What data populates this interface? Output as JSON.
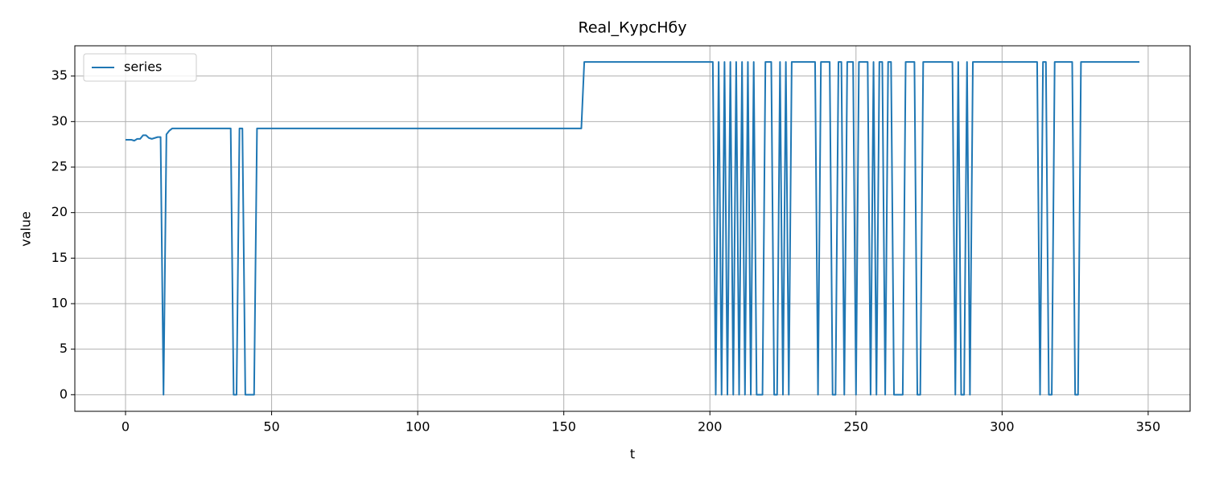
{
  "chart_data": {
    "type": "line",
    "title": "Real_КурсНбу",
    "x_label": "t",
    "y_label": "value",
    "xlim": [
      -17.35,
      364.35
    ],
    "ylim": [
      -1.825,
      38.325
    ],
    "xticks": [
      0,
      50,
      100,
      150,
      200,
      250,
      300,
      350
    ],
    "yticks": [
      0,
      5,
      10,
      15,
      20,
      25,
      30,
      35
    ],
    "grid": true,
    "legend": "upper left",
    "x": [
      0,
      1,
      2,
      3,
      4,
      5,
      6,
      7,
      8,
      9,
      10,
      11,
      12,
      13,
      14,
      15,
      16,
      17,
      18,
      19,
      20,
      21,
      22,
      23,
      24,
      25,
      26,
      27,
      28,
      29,
      30,
      31,
      32,
      33,
      34,
      35,
      36,
      37,
      38,
      39,
      40,
      41,
      42,
      43,
      44,
      45,
      46,
      47,
      48,
      49,
      50,
      51,
      52,
      53,
      54,
      55,
      56,
      57,
      58,
      59,
      60,
      61,
      62,
      63,
      64,
      65,
      66,
      67,
      68,
      69,
      70,
      71,
      72,
      73,
      74,
      75,
      76,
      77,
      78,
      79,
      80,
      81,
      82,
      83,
      84,
      85,
      86,
      87,
      88,
      89,
      90,
      91,
      92,
      93,
      94,
      95,
      96,
      97,
      98,
      99,
      100,
      101,
      102,
      103,
      104,
      105,
      106,
      107,
      108,
      109,
      110,
      111,
      112,
      113,
      114,
      115,
      116,
      117,
      118,
      119,
      120,
      121,
      122,
      123,
      124,
      125,
      126,
      127,
      128,
      129,
      130,
      131,
      132,
      133,
      134,
      135,
      136,
      137,
      138,
      139,
      140,
      141,
      142,
      143,
      144,
      145,
      146,
      147,
      148,
      149,
      150,
      151,
      152,
      153,
      154,
      155,
      156,
      157,
      158,
      159,
      160,
      161,
      162,
      163,
      164,
      165,
      166,
      167,
      168,
      169,
      170,
      171,
      172,
      173,
      174,
      175,
      176,
      177,
      178,
      179,
      180,
      181,
      182,
      183,
      184,
      185,
      186,
      187,
      188,
      189,
      190,
      191,
      192,
      193,
      194,
      195,
      196,
      197,
      198,
      199,
      200,
      201,
      202,
      203,
      204,
      205,
      206,
      207,
      208,
      209,
      210,
      211,
      212,
      213,
      214,
      215,
      216,
      217,
      218,
      219,
      220,
      221,
      222,
      223,
      224,
      225,
      226,
      227,
      228,
      229,
      230,
      231,
      232,
      233,
      234,
      235,
      236,
      237,
      238,
      239,
      240,
      241,
      242,
      243,
      244,
      245,
      246,
      247,
      248,
      249,
      250,
      251,
      252,
      253,
      254,
      255,
      256,
      257,
      258,
      259,
      260,
      261,
      262,
      263,
      264,
      265,
      266,
      267,
      268,
      269,
      270,
      271,
      272,
      273,
      274,
      275,
      276,
      277,
      278,
      279,
      280,
      281,
      282,
      283,
      284,
      285,
      286,
      287,
      288,
      289,
      290,
      291,
      292,
      293,
      294,
      295,
      296,
      297,
      298,
      299,
      300,
      301,
      302,
      303,
      304,
      305,
      306,
      307,
      308,
      309,
      310,
      311,
      312,
      313,
      314,
      315,
      316,
      317,
      318,
      319,
      320,
      321,
      322,
      323,
      324,
      325,
      326,
      327,
      328,
      329,
      330,
      331,
      332,
      333,
      334,
      335,
      336,
      337,
      338,
      339,
      340,
      341,
      342,
      343,
      344,
      345,
      346,
      347
    ],
    "series": [
      {
        "name": "series",
        "color": "#1f77b4",
        "values": [
          28,
          28,
          28,
          27.9,
          28.1,
          28.1,
          28.5,
          28.5,
          28.2,
          28.1,
          28.2,
          28.3,
          28.3,
          0,
          28.6,
          29,
          29.25,
          29.25,
          29.25,
          29.25,
          29.25,
          29.25,
          29.25,
          29.25,
          29.25,
          29.25,
          29.25,
          29.25,
          29.25,
          29.25,
          29.25,
          29.25,
          29.25,
          29.25,
          29.25,
          29.25,
          29.25,
          0,
          0,
          29.25,
          29.25,
          0,
          0,
          0,
          0,
          29.25,
          29.25,
          29.25,
          29.25,
          29.25,
          29.25,
          29.25,
          29.25,
          29.25,
          29.25,
          29.25,
          29.25,
          29.25,
          29.25,
          29.25,
          29.25,
          29.25,
          29.25,
          29.25,
          29.25,
          29.25,
          29.25,
          29.25,
          29.25,
          29.25,
          29.25,
          29.25,
          29.25,
          29.25,
          29.25,
          29.25,
          29.25,
          29.25,
          29.25,
          29.25,
          29.25,
          29.25,
          29.25,
          29.25,
          29.25,
          29.25,
          29.25,
          29.25,
          29.25,
          29.25,
          29.25,
          29.25,
          29.25,
          29.25,
          29.25,
          29.25,
          29.25,
          29.25,
          29.25,
          29.25,
          29.25,
          29.25,
          29.25,
          29.25,
          29.25,
          29.25,
          29.25,
          29.25,
          29.25,
          29.25,
          29.25,
          29.25,
          29.25,
          29.25,
          29.25,
          29.25,
          29.25,
          29.25,
          29.25,
          29.25,
          29.25,
          29.25,
          29.25,
          29.25,
          29.25,
          29.25,
          29.25,
          29.25,
          29.25,
          29.25,
          29.25,
          29.25,
          29.25,
          29.25,
          29.25,
          29.25,
          29.25,
          29.25,
          29.25,
          29.25,
          29.25,
          29.25,
          29.25,
          29.25,
          29.25,
          29.25,
          29.25,
          29.25,
          29.25,
          29.25,
          29.25,
          29.25,
          29.25,
          29.25,
          29.25,
          29.25,
          29.25,
          36.55,
          36.55,
          36.55,
          36.55,
          36.55,
          36.55,
          36.55,
          36.55,
          36.55,
          36.55,
          36.55,
          36.55,
          36.55,
          36.55,
          36.55,
          36.55,
          36.55,
          36.55,
          36.55,
          36.55,
          36.55,
          36.55,
          36.55,
          36.55,
          36.55,
          36.55,
          36.55,
          36.55,
          36.55,
          36.55,
          36.55,
          36.55,
          36.55,
          36.55,
          36.55,
          36.55,
          36.55,
          36.55,
          36.55,
          36.55,
          36.55,
          36.55,
          36.55,
          36.55,
          36.55,
          0,
          36.55,
          0,
          36.55,
          0,
          36.55,
          0,
          36.55,
          0,
          36.55,
          0,
          36.55,
          0,
          36.55,
          0,
          0,
          0,
          36.55,
          36.55,
          36.55,
          0,
          0,
          36.55,
          0,
          36.55,
          0,
          36.55,
          36.55,
          36.55,
          36.55,
          36.55,
          36.55,
          36.55,
          36.55,
          36.55,
          0,
          36.55,
          36.55,
          36.55,
          36.55,
          0,
          0,
          36.55,
          36.55,
          0,
          36.55,
          36.55,
          36.55,
          0,
          36.55,
          36.55,
          36.55,
          36.55,
          0,
          36.55,
          0,
          36.55,
          36.55,
          0,
          36.55,
          36.55,
          0,
          0,
          0,
          0,
          36.55,
          36.55,
          36.55,
          36.55,
          0,
          0,
          36.55,
          36.55,
          36.55,
          36.55,
          36.55,
          36.55,
          36.55,
          36.55,
          36.55,
          36.55,
          36.55,
          0,
          36.55,
          0,
          0,
          36.55,
          0,
          36.55,
          36.55,
          36.55,
          36.55,
          36.55,
          36.55,
          36.55,
          36.55,
          36.55,
          36.55,
          36.55,
          36.55,
          36.55,
          36.55,
          36.55,
          36.55,
          36.55,
          36.55,
          36.55,
          36.55,
          36.55,
          36.55,
          36.55,
          0,
          36.55,
          36.55,
          0,
          0,
          36.55,
          36.55,
          36.55,
          36.55,
          36.55,
          36.55,
          36.55,
          0,
          0,
          36.55,
          36.55,
          36.55,
          36.55,
          36.55,
          36.55,
          36.55,
          36.55,
          36.55,
          36.55,
          36.55,
          36.55,
          36.55,
          36.55,
          36.55,
          36.55,
          36.55,
          36.55,
          36.55,
          36.55,
          36.55
        ]
      }
    ]
  }
}
